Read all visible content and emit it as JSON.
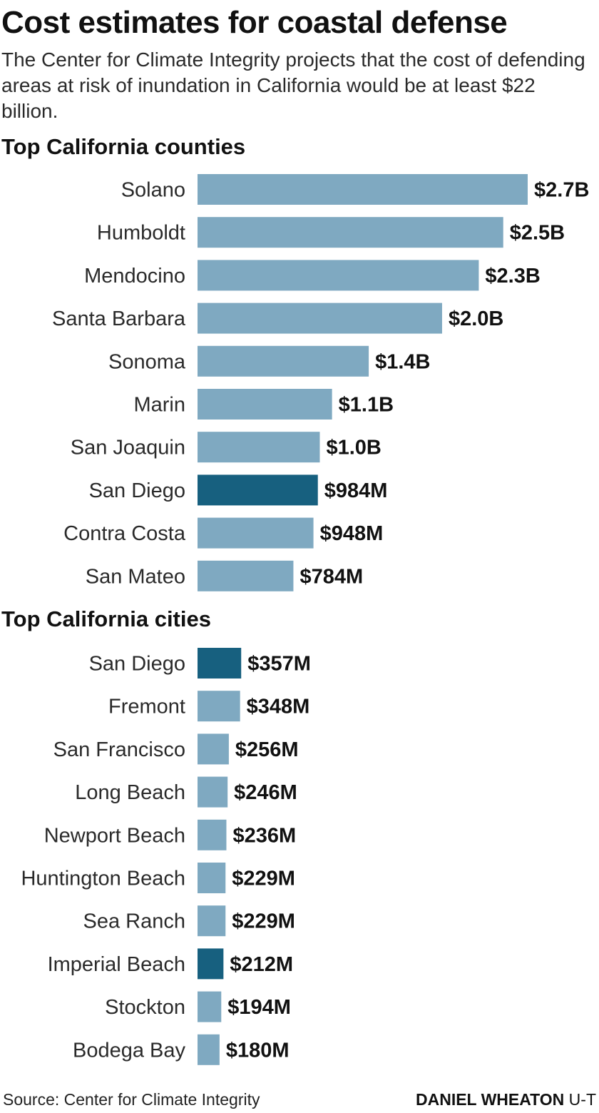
{
  "title": "Cost estimates for coastal defense",
  "subtitle": "The Center for Climate Integrity projects that the cost of defending areas at risk of inundation in California would be at least $22 billion.",
  "colors": {
    "bar": "#7fa9c1",
    "highlight": "#17607f",
    "text": "#111111"
  },
  "chart_data": [
    {
      "type": "bar",
      "orientation": "horizontal",
      "title": "Top California counties",
      "unit": "USD",
      "categories": [
        "Solano",
        "Humboldt",
        "Mendocino",
        "Santa Barbara",
        "Sonoma",
        "Marin",
        "San Joaquin",
        "San Diego",
        "Contra Costa",
        "San Mateo"
      ],
      "values": [
        2700000000,
        2500000000,
        2300000000,
        2000000000,
        1400000000,
        1100000000,
        1000000000,
        984000000,
        948000000,
        784000000
      ],
      "labels": [
        "$2.7B",
        "$2.5B",
        "$2.3B",
        "$2.0B",
        "$1.4B",
        "$1.1B",
        "$1.0B",
        "$984M",
        "$948M",
        "$784M"
      ],
      "highlighted": [
        "San Diego"
      ]
    },
    {
      "type": "bar",
      "orientation": "horizontal",
      "title": "Top California cities",
      "unit": "USD",
      "categories": [
        "San Diego",
        "Fremont",
        "San Francisco",
        "Long Beach",
        "Newport Beach",
        "Huntington Beach",
        "Sea Ranch",
        "Imperial Beach",
        "Stockton",
        "Bodega Bay"
      ],
      "values": [
        357000000,
        348000000,
        256000000,
        246000000,
        236000000,
        229000000,
        229000000,
        212000000,
        194000000,
        180000000
      ],
      "labels": [
        "$357M",
        "$348M",
        "$256M",
        "$246M",
        "$236M",
        "$229M",
        "$229M",
        "$212M",
        "$194M",
        "$180M"
      ],
      "highlighted": [
        "San Diego",
        "Imperial Beach"
      ]
    }
  ],
  "footer": {
    "source": "Source: Center for Climate Integrity",
    "credit_name": "DANIEL WHEATON",
    "credit_org": "U-T"
  }
}
